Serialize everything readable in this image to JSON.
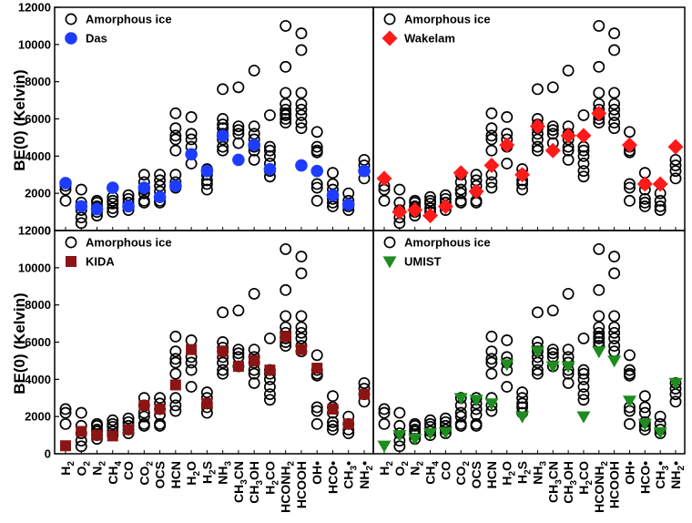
{
  "chart_data": [
    {
      "type": "scatter",
      "panel": "top-left",
      "ylabel": "BE(0) (Kelvin)",
      "ylim": [
        0,
        12000
      ],
      "yticks": [
        "0",
        "2000",
        "4000",
        "6000",
        "8000",
        "10000",
        "12000"
      ],
      "legend": {
        "placement": "top-left",
        "entries": [
          "Amorphous ice",
          "Das"
        ]
      },
      "categories": [
        "H2",
        "O2",
        "N2",
        "CH4",
        "CO",
        "CO2",
        "OCS",
        "HCN",
        "H2O",
        "H2S",
        "NH3",
        "CH3CN",
        "CH3OH",
        "H2CO",
        "HCONH2",
        "HCOOH",
        "OH•",
        "HCO•",
        "CH3•",
        "NH2•"
      ],
      "series": [
        {
          "name": "Das",
          "marker": "circle-filled",
          "color": "#1e3cff",
          "values": [
            2550,
            1300,
            1150,
            2300,
            1300,
            2300,
            1800,
            2400,
            4100,
            3200,
            5100,
            3800,
            4600,
            3300,
            null,
            3500,
            3200,
            1900,
            1400,
            3200
          ]
        }
      ]
    },
    {
      "type": "scatter",
      "panel": "top-right",
      "ylim": [
        0,
        12000
      ],
      "legend": {
        "placement": "top-left",
        "entries": [
          "Amorphous ice",
          "Wakelam"
        ]
      },
      "series": [
        {
          "name": "Wakelam",
          "marker": "diamond",
          "color": "#ff1a1a",
          "values": [
            2800,
            1000,
            1100,
            800,
            1300,
            3100,
            2100,
            3500,
            4600,
            3000,
            5600,
            4300,
            5100,
            5100,
            6300,
            null,
            4600,
            2500,
            2500,
            4500
          ]
        }
      ]
    },
    {
      "type": "scatter",
      "panel": "bottom-left",
      "ylabel": "BE(0) (Kelvin)",
      "ylim": [
        0,
        12000
      ],
      "yticks": [
        "0",
        "2000",
        "4000",
        "6000",
        "8000",
        "10000",
        "12000"
      ],
      "legend": {
        "placement": "top-left",
        "entries": [
          "Amorphous ice",
          "KIDA"
        ]
      },
      "series": [
        {
          "name": "KIDA",
          "marker": "square",
          "color": "#8b1414",
          "values": [
            430,
            1200,
            1000,
            960,
            1300,
            2600,
            2400,
            3700,
            5600,
            2700,
            5500,
            4700,
            5000,
            4500,
            6300,
            5600,
            4600,
            2400,
            1600,
            3200
          ]
        }
      ]
    },
    {
      "type": "scatter",
      "panel": "bottom-right",
      "ylim": [
        0,
        12000
      ],
      "legend": {
        "placement": "top-left",
        "entries": [
          "Amorphous ice",
          "UMIST"
        ]
      },
      "series": [
        {
          "name": "UMIST",
          "marker": "triangle-down",
          "color": "#1e8c1e",
          "values": [
            430,
            1000,
            800,
            1100,
            1150,
            2990,
            2890,
            2700,
            4800,
            2000,
            5500,
            4700,
            4700,
            2000,
            5500,
            5000,
            2850,
            1600,
            1160,
            3800
          ]
        }
      ]
    }
  ],
  "amorphous_ice": [
    [
      2400,
      2200,
      1600
    ],
    [
      2200,
      1500,
      1100,
      700,
      400
    ],
    [
      1600,
      1500,
      1300,
      1200,
      1000,
      800
    ],
    [
      1800,
      1600,
      1450,
      1200,
      1000
    ],
    [
      1900,
      1700,
      1500,
      1300,
      1100
    ],
    [
      3000,
      2600,
      2200,
      2000,
      1600,
      1500
    ],
    [
      3000,
      2700,
      2400,
      2100,
      1600,
      1500
    ],
    [
      6300,
      5500,
      5100,
      4900,
      4300,
      3000,
      2600,
      2300
    ],
    [
      6100,
      5200,
      4900,
      4500,
      3600
    ],
    [
      3300,
      3000,
      2700,
      2500,
      2200
    ],
    [
      7600,
      6000,
      5700,
      5500,
      5200,
      4900,
      4500,
      4300
    ],
    [
      7700,
      5600,
      5400,
      5200,
      4700
    ],
    [
      8600,
      5600,
      5200,
      4900,
      4500,
      4300,
      3800
    ],
    [
      6200,
      4500,
      4300,
      4000,
      3600,
      3200,
      2900
    ],
    [
      11000,
      8800,
      7400,
      6800,
      6500,
      6300,
      6200,
      6000,
      5800
    ],
    [
      10600,
      9700,
      7400,
      6800,
      6500,
      6200,
      5800,
      5500
    ],
    [
      5300,
      4500,
      4300,
      4200,
      2500,
      2300,
      1600
    ],
    [
      3100,
      2500,
      2200,
      1700,
      1500,
      1300
    ],
    [
      2000,
      1600,
      1300,
      1100
    ],
    [
      3800,
      3500,
      3200,
      2800
    ]
  ],
  "x_tick_labels": [
    {
      "base": "H",
      "sub": "2",
      "sup": ""
    },
    {
      "base": "O",
      "sub": "2",
      "sup": ""
    },
    {
      "base": "N",
      "sub": "2",
      "sup": ""
    },
    {
      "base": "CH",
      "sub": "4",
      "sup": ""
    },
    {
      "base": "CO",
      "sub": "",
      "sup": ""
    },
    {
      "base": "CO",
      "sub": "2",
      "sup": ""
    },
    {
      "base": "OCS",
      "sub": "",
      "sup": ""
    },
    {
      "base": "HCN",
      "sub": "",
      "sup": ""
    },
    {
      "base": "H",
      "sub": "2",
      "sup": "O"
    },
    {
      "base": "H",
      "sub": "2",
      "sup": "S"
    },
    {
      "base": "NH",
      "sub": "3",
      "sup": ""
    },
    {
      "base": "CH",
      "sub": "3",
      "sup": "CN"
    },
    {
      "base": "CH",
      "sub": "3",
      "sup": "OH"
    },
    {
      "base": "H",
      "sub": "2",
      "sup": "CO"
    },
    {
      "base": "HCONH",
      "sub": "2",
      "sup": ""
    },
    {
      "base": "HCOOH",
      "sub": "",
      "sup": ""
    },
    {
      "base": "OH•",
      "sub": "",
      "sup": ""
    },
    {
      "base": "HCO•",
      "sub": "",
      "sup": ""
    },
    {
      "base": "CH",
      "sub": "3",
      "sup": "•"
    },
    {
      "base": "NH",
      "sub": "2",
      "sup": "•"
    }
  ],
  "colors": {
    "axis": "#000000",
    "amorphous_marker": "#000000"
  }
}
